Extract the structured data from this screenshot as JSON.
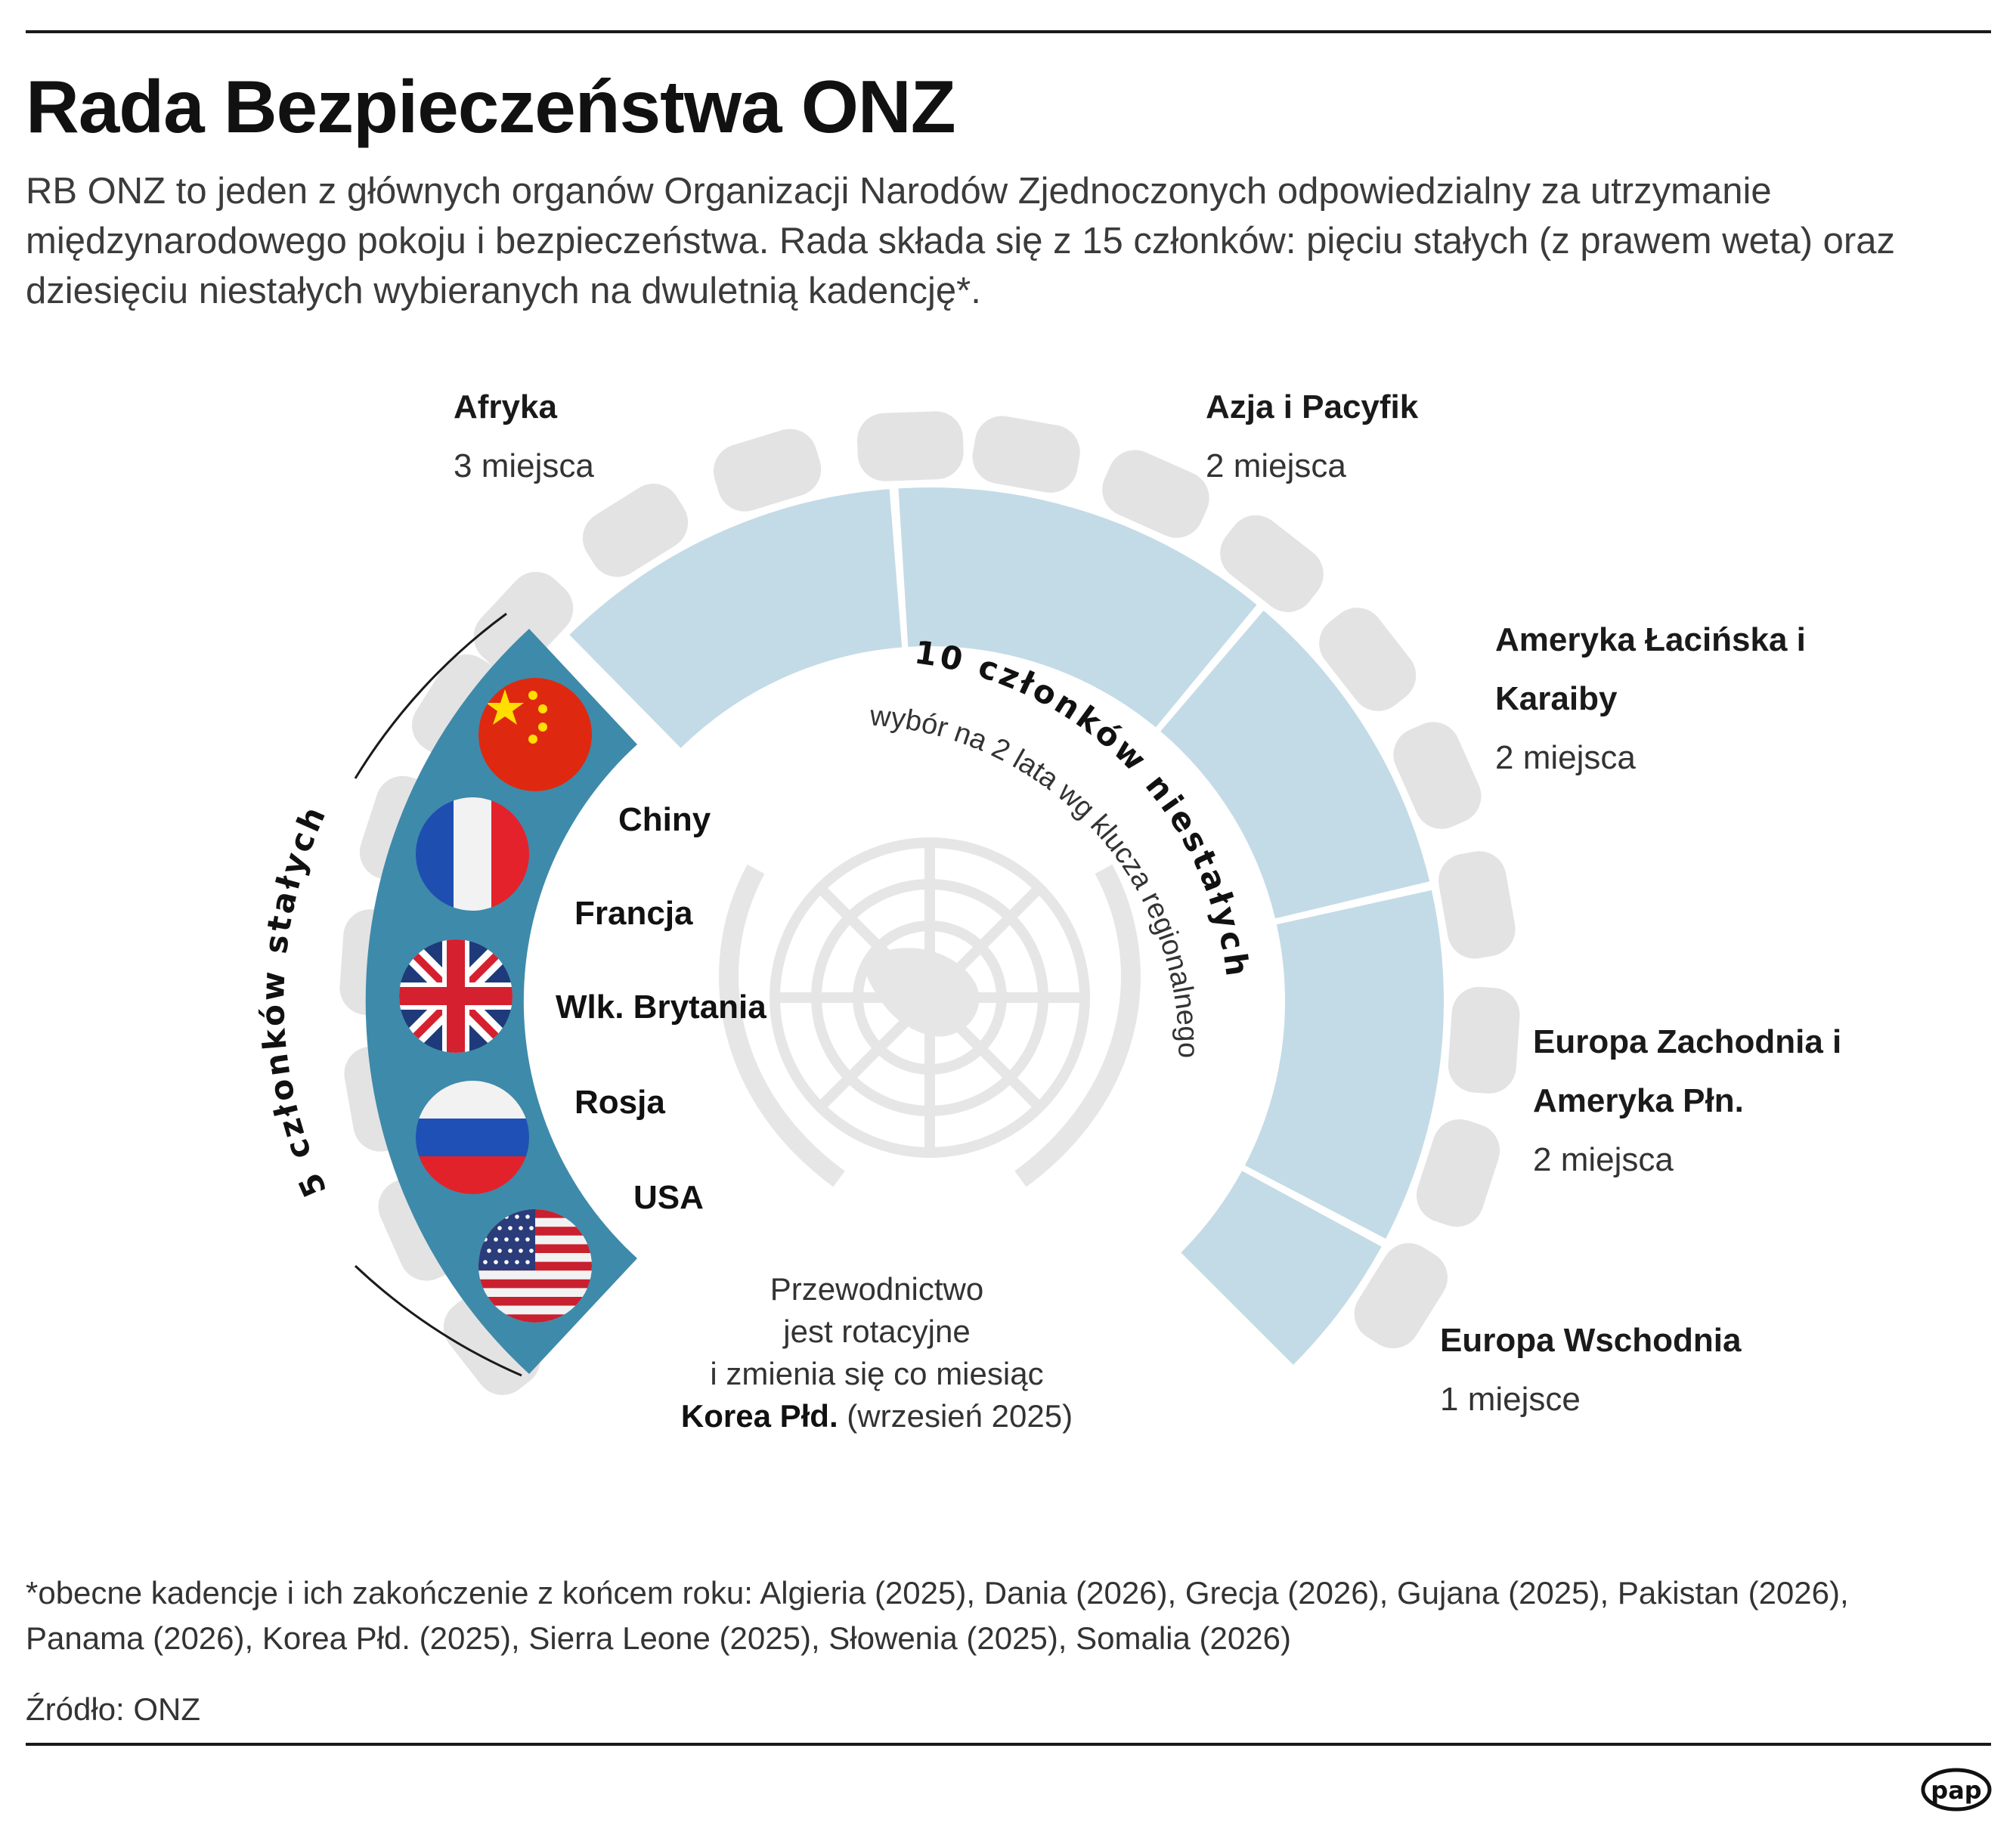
{
  "title": "Rada Bezpieczeństwa ONZ",
  "intro": "RB ONZ to jeden z głównych organów Organizacji Narodów Zjednoczonych odpowiedzialny za utrzymanie międzynarodowego pokoju i bezpieczeństwa. Rada składa się z 15 członków: pięciu stałych (z prawem weta) oraz dziesięciu niestałych wybieranych na dwuletnią kadencję*.",
  "regions": [
    {
      "name": "Afryka",
      "seats": "3 miejsca"
    },
    {
      "name": "Azja i Pacyfik",
      "seats": "2 miejsca"
    },
    {
      "name": "Ameryka Łacińska i Karaiby",
      "seats": "2 miejsca"
    },
    {
      "name": "Europa Zachodnia i Ameryka Płn.",
      "seats": "2 miejsca"
    },
    {
      "name": "Europa Wschodnia",
      "seats": "1 miejsce"
    }
  ],
  "permanent": {
    "label": "5 członków stałych",
    "members": [
      "Chiny",
      "Francja",
      "Wlk. Brytania",
      "Rosja",
      "USA"
    ]
  },
  "non_permanent": {
    "label": "10 członków niestałych",
    "sublabel": "wybór na 2 lata wg klucza regionalnego"
  },
  "presidency": {
    "line1": "Przewodnictwo",
    "line2": "jest rotacyjne",
    "line3": "i zmienia się co miesiąc",
    "country": "Korea Płd.",
    "date": " (wrzesień 2025)"
  },
  "footnote": "*obecne kadencje i ich zakończenie z końcem roku: Algieria (2025), Dania (2026), Grecja (2026), Gujana (2025), Pakistan (2026), Panama (2026), Korea Płd. (2025), Sierra Leone (2025), Słowenia (2025), Somalia (2026)",
  "source": "Źródło: ONZ",
  "logo_text": "pap",
  "colors": {
    "permanent": "#3e8aaa",
    "non_permanent": "#c3dbe6",
    "chairs": "#e3e3e3",
    "emblem": "#e6e6e6",
    "text": "#1a1a1a"
  }
}
